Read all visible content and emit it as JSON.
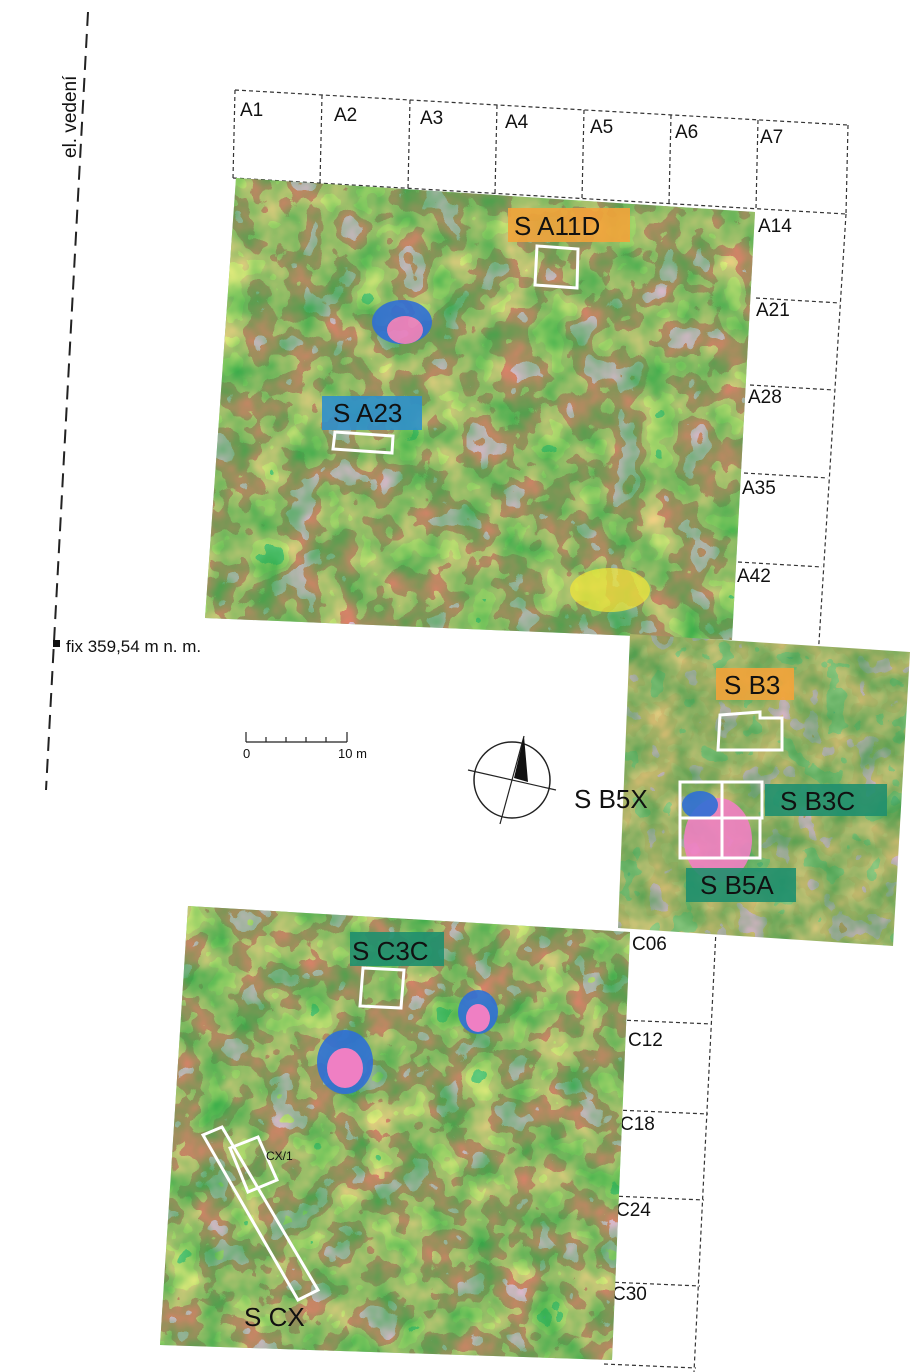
{
  "power_line_label": "el. vedení",
  "fixpoint_label": "fix 359,54 m  n. m.",
  "scale": {
    "zero_label": "0",
    "end_label": "10 m"
  },
  "grid_top": [
    "A1",
    "A2",
    "A3",
    "A4",
    "A5",
    "A6",
    "A7"
  ],
  "grid_right_a": [
    "A14",
    "A21",
    "A28",
    "A35",
    "A42"
  ],
  "grid_right_c": [
    "C06",
    "C12",
    "C18",
    "C24",
    "C30"
  ],
  "sections": {
    "a11d": "S A11D",
    "a23": "S A23",
    "b3": "S B3",
    "b5x": "S B5X",
    "b3c": "S B3C",
    "b5a": "S B5A",
    "c3c": "S C3C",
    "cx": "S CX",
    "cx1": "CX/1"
  },
  "label_colors": {
    "orange": "#f2a33a",
    "blue": "#2f8fcb",
    "teal": "#1f8f6e"
  },
  "raster_colors": [
    "#2aa845",
    "#f3e63a",
    "#e8322a",
    "#ef7fc3",
    "#2f6fd6",
    "#f4a43c"
  ]
}
